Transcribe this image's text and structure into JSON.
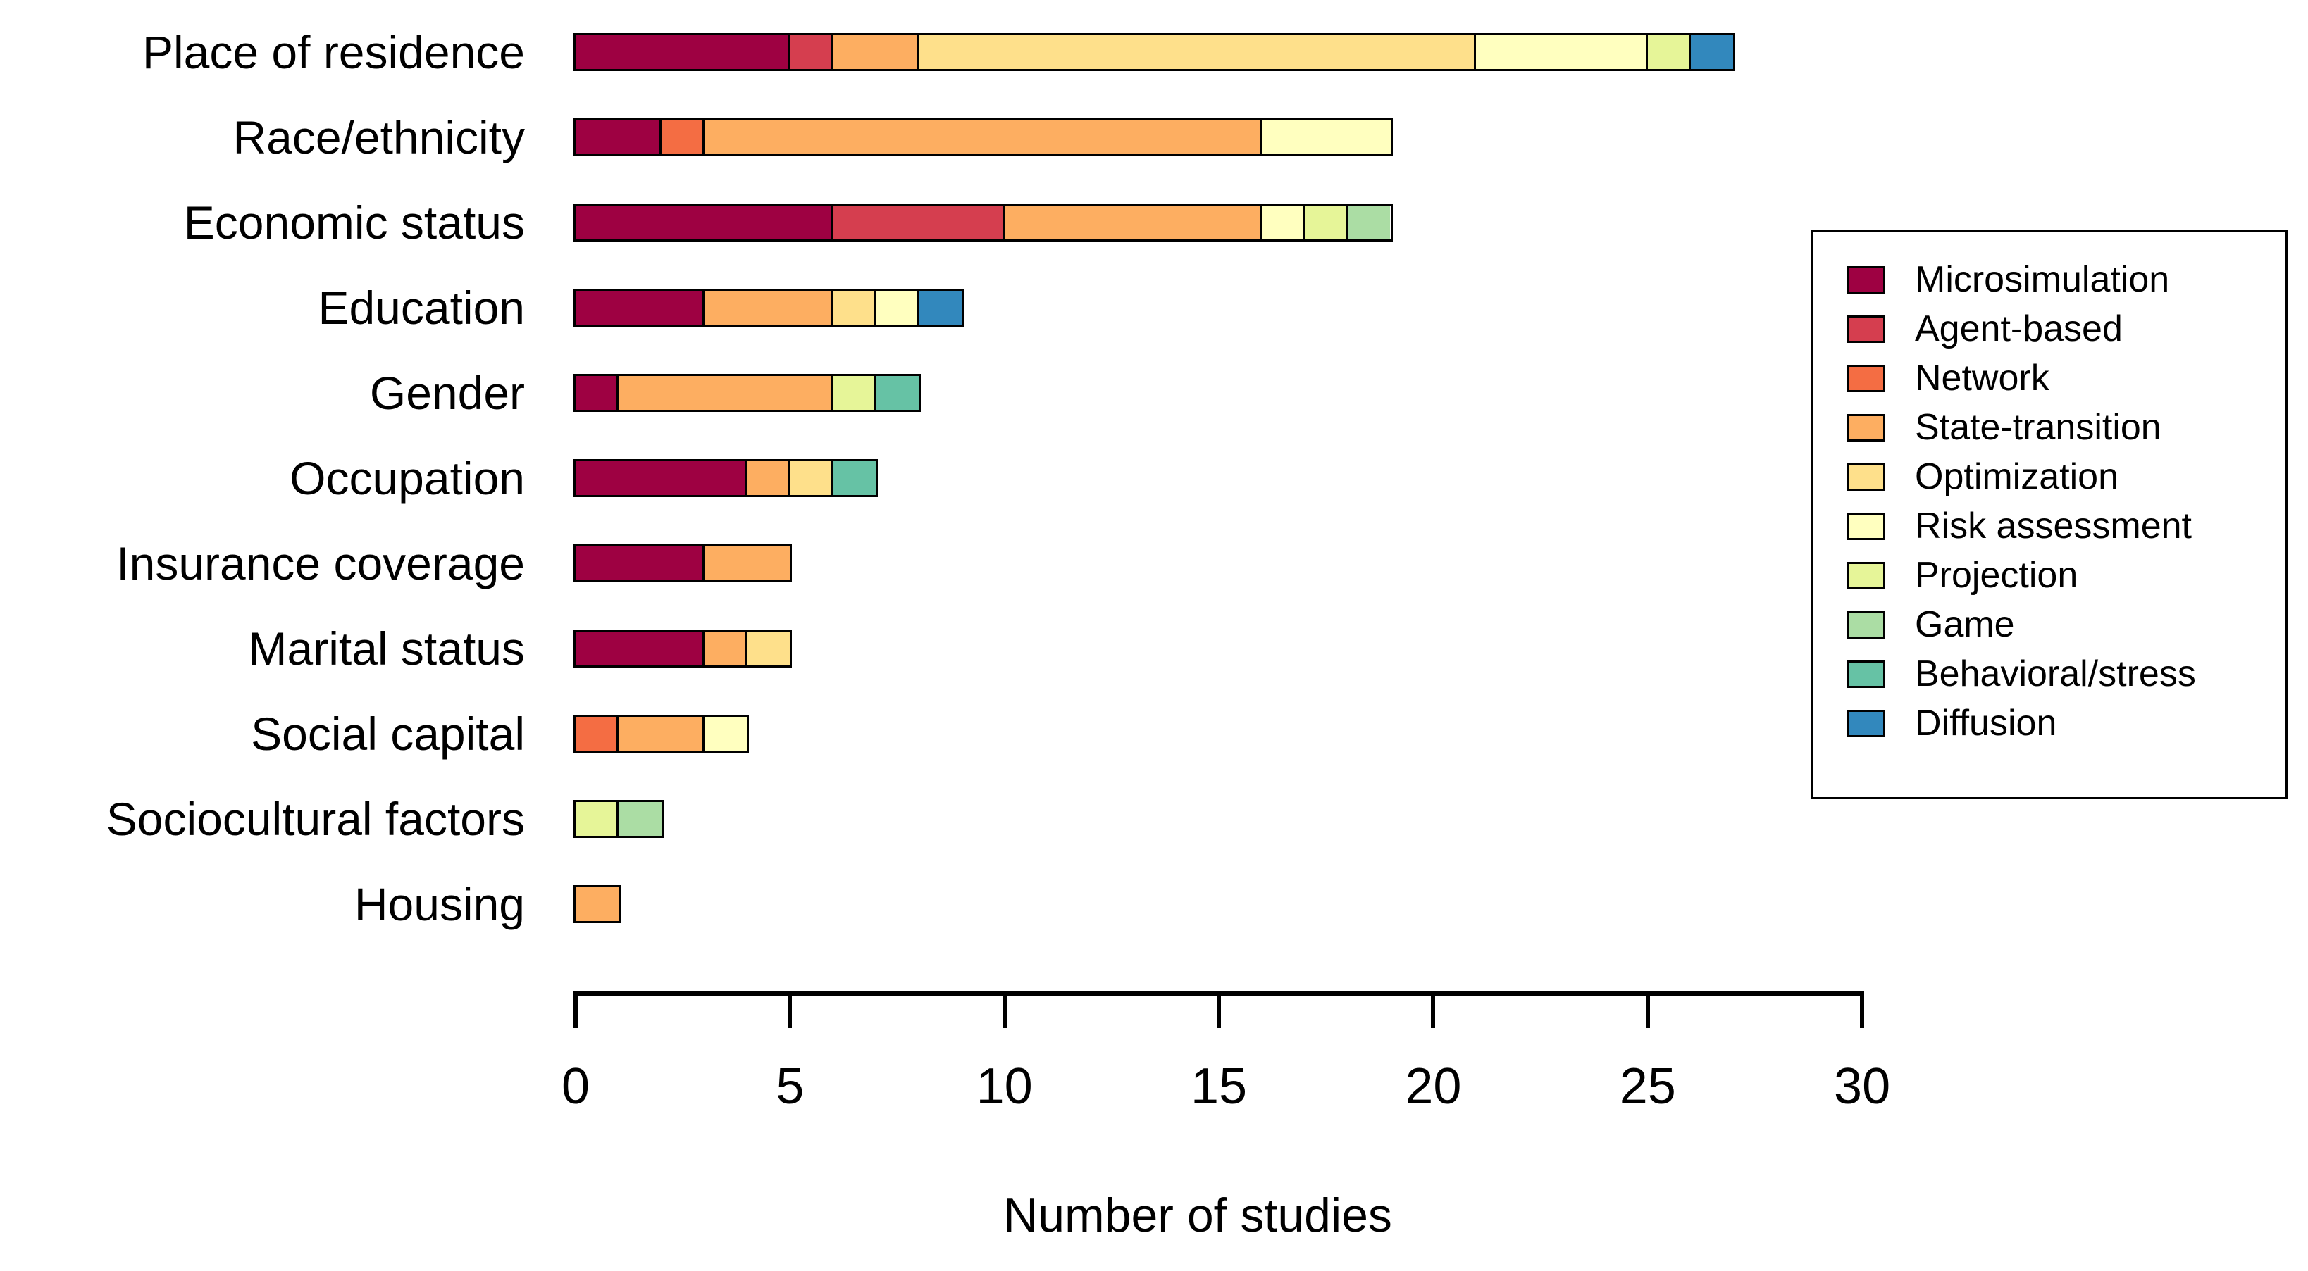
{
  "chart_data": {
    "type": "bar",
    "orientation": "horizontal",
    "stacked": true,
    "xlabel": "Number of studies",
    "xlim": [
      0,
      30
    ],
    "xticks": [
      0,
      5,
      10,
      15,
      20,
      25,
      30
    ],
    "grid": false,
    "legend_position": "right",
    "categories": [
      "Place of residence",
      "Race/ethnicity",
      "Economic status",
      "Education",
      "Gender",
      "Occupation",
      "Insurance coverage",
      "Marital status",
      "Social capital",
      "Sociocultural factors",
      "Housing"
    ],
    "series": [
      {
        "name": "Microsimulation",
        "color": "#9E0142",
        "values": [
          5,
          2,
          6,
          3,
          1,
          4,
          3,
          3,
          0,
          0,
          0
        ]
      },
      {
        "name": "Agent-based",
        "color": "#D53E4F",
        "values": [
          1,
          0,
          4,
          0,
          0,
          0,
          0,
          0,
          0,
          0,
          0
        ]
      },
      {
        "name": "Network",
        "color": "#F46D43",
        "values": [
          0,
          1,
          0,
          0,
          0,
          0,
          0,
          0,
          1,
          0,
          0
        ]
      },
      {
        "name": "State-transition",
        "color": "#FDAE61",
        "values": [
          2,
          13,
          6,
          3,
          5,
          1,
          2,
          1,
          2,
          0,
          1
        ]
      },
      {
        "name": "Optimization",
        "color": "#FEE08B",
        "values": [
          13,
          0,
          0,
          1,
          0,
          1,
          0,
          1,
          0,
          0,
          0
        ]
      },
      {
        "name": "Risk assessment",
        "color": "#FFFFBF",
        "values": [
          4,
          3,
          1,
          1,
          0,
          0,
          0,
          0,
          1,
          0,
          0
        ]
      },
      {
        "name": "Projection",
        "color": "#E6F598",
        "values": [
          1,
          0,
          1,
          0,
          1,
          0,
          0,
          0,
          0,
          1,
          0
        ]
      },
      {
        "name": "Game",
        "color": "#ABDDA4",
        "values": [
          0,
          0,
          1,
          0,
          0,
          0,
          0,
          0,
          0,
          1,
          0
        ]
      },
      {
        "name": "Behavioral/stress",
        "color": "#66C2A5",
        "values": [
          0,
          0,
          0,
          0,
          1,
          1,
          0,
          0,
          0,
          0,
          0
        ]
      },
      {
        "name": "Diffusion",
        "color": "#3288BD",
        "values": [
          1,
          0,
          0,
          1,
          0,
          0,
          0,
          0,
          0,
          0,
          0
        ]
      }
    ],
    "totals": [
      27,
      19,
      19,
      9,
      8,
      7,
      5,
      5,
      4,
      2,
      1
    ],
    "bar_border_color": "#000000",
    "text_color": "#000000"
  }
}
